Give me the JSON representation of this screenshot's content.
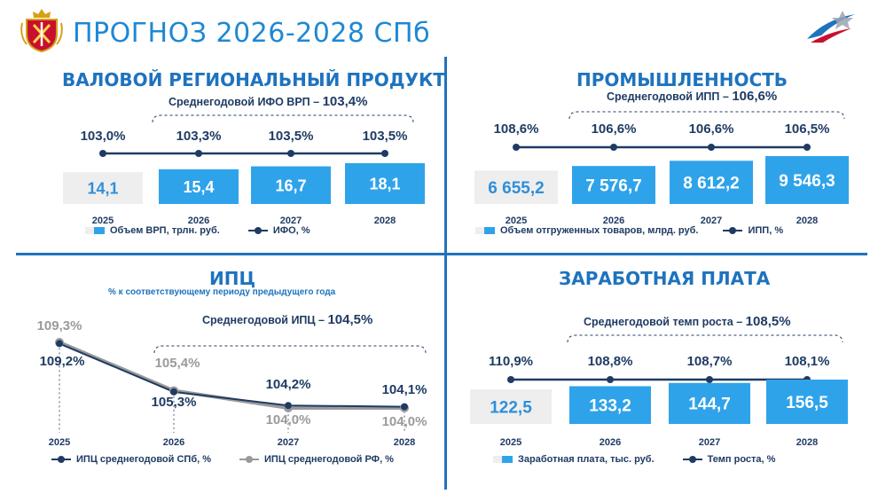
{
  "header": {
    "title": "ПРОГНОЗ 2026-2028 СПб"
  },
  "colors": {
    "accent": "#1e88d4",
    "bar": "#2fa3ea",
    "bar_base": "#eeeeee",
    "line": "#1f3b64",
    "line_grey": "#9a9a9a"
  },
  "icons": {
    "emblem": "spb-coat-of-arms-icon",
    "logo": "swoosh-logo-icon"
  },
  "chart_data": [
    {
      "id": "vrp",
      "type": "bar",
      "title": "ВАЛОВОЙ РЕГИОНАЛЬНЫЙ ПРОДУКТ",
      "avg_label": "Среднегодовой ИФО ВРП –",
      "avg_value": "103,4%",
      "categories": [
        "2025",
        "2026",
        "2027",
        "2028"
      ],
      "series": [
        {
          "name": "Объем ВРП, трлн. руб.",
          "type": "bar",
          "values": [
            14.1,
            15.4,
            16.7,
            18.1
          ],
          "labels": [
            "14,1",
            "15,4",
            "16,7",
            "18,1"
          ]
        },
        {
          "name": "ИФО, %",
          "type": "line",
          "values": [
            103.0,
            103.3,
            103.5,
            103.5
          ],
          "labels": [
            "103,0%",
            "103,3%",
            "103,5%",
            "103,5%"
          ]
        }
      ]
    },
    {
      "id": "prom",
      "type": "bar",
      "title": "ПРОМЫШЛЕННОСТЬ",
      "avg_label": "Среднегодовой ИПП –",
      "avg_value": "106,6%",
      "categories": [
        "2025",
        "2026",
        "2027",
        "2028"
      ],
      "series": [
        {
          "name": "Объем отгруженных товаров, млрд. руб.",
          "type": "bar",
          "values": [
            6655.2,
            7576.7,
            8612.2,
            9546.3
          ],
          "labels": [
            "6 655,2",
            "7 576,7",
            "8 612,2",
            "9 546,3"
          ]
        },
        {
          "name": "ИПП, %",
          "type": "line",
          "values": [
            108.6,
            106.6,
            106.6,
            106.5
          ],
          "labels": [
            "108,6%",
            "106,6%",
            "106,6%",
            "106,5%"
          ]
        }
      ]
    },
    {
      "id": "ipc",
      "type": "line",
      "title": "ИПЦ",
      "subtitle": "% к соответствующему периоду предыдущего года",
      "avg_label": "Среднегодовой ИПЦ –",
      "avg_value": "104,5%",
      "categories": [
        "2025",
        "2026",
        "2027",
        "2028"
      ],
      "series": [
        {
          "name": "ИПЦ среднегодовой СПб, %",
          "values": [
            109.2,
            105.3,
            104.2,
            104.1
          ],
          "labels": [
            "109,2%",
            "105,3%",
            "104,2%",
            "104,1%"
          ]
        },
        {
          "name": "ИПЦ среднегодовой РФ, %",
          "values": [
            109.3,
            105.4,
            104.0,
            104.0
          ],
          "labels": [
            "109,3%",
            "105,4%",
            "104,0%",
            "104,0%"
          ]
        }
      ]
    },
    {
      "id": "zp",
      "type": "bar",
      "title": "ЗАРАБОТНАЯ ПЛАТА",
      "avg_label": "Среднегодовой темп роста –",
      "avg_value": "108,5%",
      "categories": [
        "2025",
        "2026",
        "2027",
        "2028"
      ],
      "series": [
        {
          "name": "Заработная плата, тыс. руб.",
          "type": "bar",
          "values": [
            122.5,
            133.2,
            144.7,
            156.5
          ],
          "labels": [
            "122,5",
            "133,2",
            "144,7",
            "156,5"
          ]
        },
        {
          "name": "Темп роста, %",
          "type": "line",
          "values": [
            110.9,
            108.8,
            108.7,
            108.1
          ],
          "labels": [
            "110,9%",
            "108,8%",
            "108,7%",
            "108,1%"
          ]
        }
      ]
    }
  ]
}
